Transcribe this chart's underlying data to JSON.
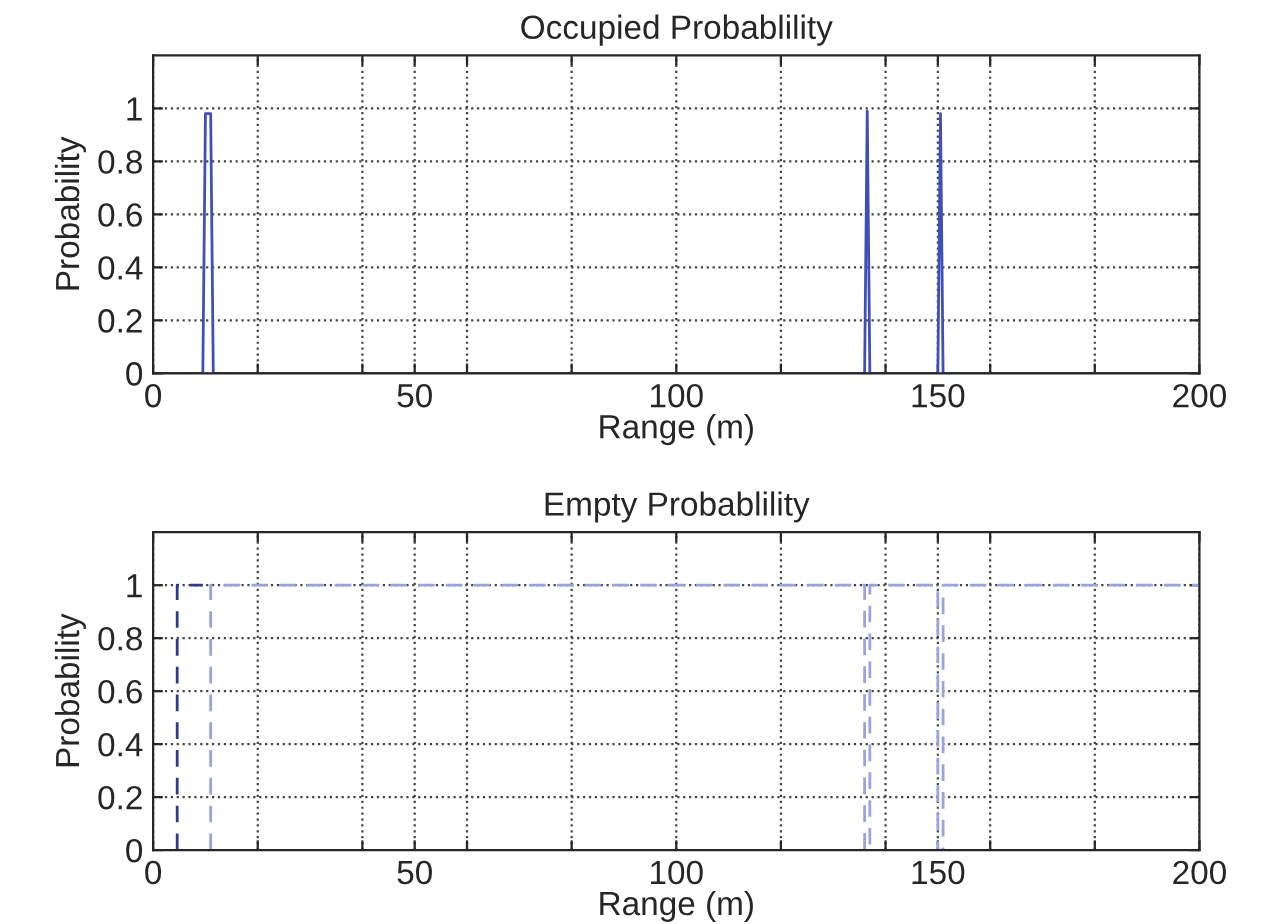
{
  "chart_data": [
    {
      "type": "line",
      "title": "Occupied Probablility",
      "xlabel": "Range (m)",
      "ylabel": "Probability",
      "series": [
        {
          "color": "#3f4fb8",
          "line_style": "solid",
          "x": [
            0,
            9.5,
            10,
            11,
            11.5,
            136,
            136.5,
            137,
            150,
            150.5,
            151,
            200
          ],
          "values": [
            0,
            0,
            0.98,
            0.98,
            0,
            0,
            0.99,
            0,
            0,
            0.98,
            0,
            0
          ]
        }
      ],
      "xlim": [
        0,
        200
      ],
      "ylim": [
        0,
        1.2
      ],
      "xticks": [
        0,
        {
          "value": 20,
          "label": null
        },
        {
          "value": 40,
          "label": null
        },
        50,
        {
          "value": 60,
          "label": null
        },
        {
          "value": 80,
          "label": null
        },
        100,
        {
          "value": 120,
          "label": null
        },
        {
          "value": 140,
          "label": null
        },
        150,
        {
          "value": 160,
          "label": null
        },
        {
          "value": 180,
          "label": null
        },
        200
      ],
      "yticks": [
        0,
        0.2,
        0.4,
        0.6,
        0.8,
        1
      ],
      "grid": true,
      "legend": false
    },
    {
      "type": "line",
      "title": "Empty Probablility",
      "xlabel": "Range (m)",
      "ylabel": "Probability",
      "series": [
        {
          "color": "#9aa3dc",
          "line_style": "dashed",
          "x": [
            11,
            11,
            136,
            136,
            137,
            137,
            150,
            150,
            151,
            151,
            200
          ],
          "values": [
            0,
            1,
            1,
            0,
            0,
            1,
            1,
            0,
            0,
            1,
            1
          ]
        },
        {
          "color": "#2e3a8c",
          "line_style": "dashed",
          "x": [
            4.6,
            4.6,
            9.5
          ],
          "values": [
            0,
            1,
            1
          ]
        }
      ],
      "xlim": [
        0,
        200
      ],
      "ylim": [
        0,
        1.2
      ],
      "xticks": [
        0,
        {
          "value": 20,
          "label": null
        },
        {
          "value": 40,
          "label": null
        },
        50,
        {
          "value": 60,
          "label": null
        },
        {
          "value": 80,
          "label": null
        },
        100,
        {
          "value": 120,
          "label": null
        },
        {
          "value": 140,
          "label": null
        },
        150,
        {
          "value": 160,
          "label": null
        },
        {
          "value": 180,
          "label": null
        },
        200
      ],
      "yticks": [
        0,
        0.2,
        0.4,
        0.6,
        0.8,
        1
      ],
      "grid": true,
      "legend": false
    }
  ]
}
